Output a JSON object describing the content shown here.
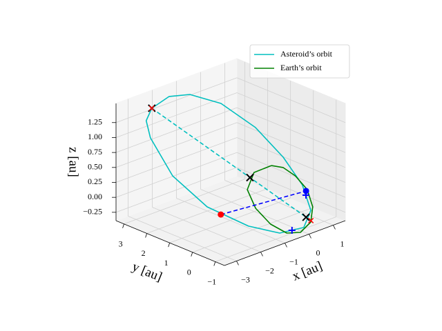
{
  "chart_data": {
    "type": "line3d",
    "xlabel": "x [au]",
    "ylabel": "y [au]",
    "zlabel": "z [au]",
    "xlim": [
      -3.5,
      1.5
    ],
    "ylim": [
      -1.4,
      3.35
    ],
    "zlim": [
      -0.39,
      1.57
    ],
    "xticks": [
      {
        "value": -3,
        "label": "−3"
      },
      {
        "value": -2,
        "label": "−2"
      },
      {
        "value": -1,
        "label": "−1"
      },
      0,
      1
    ],
    "yticks": [
      {
        "value": -1,
        "label": "−1"
      },
      0,
      1,
      2,
      3
    ],
    "zticks": [
      {
        "value": -0.25,
        "label": "−0.25"
      },
      {
        "value": 0,
        "label": "0.00"
      },
      0.25,
      {
        "value": 0.5,
        "label": "0.50"
      },
      0.75,
      {
        "value": 1,
        "label": "1.00"
      },
      1.25
    ],
    "grid": true,
    "legend": "upper right",
    "series": [
      {
        "name": "Asteroid’s orbit",
        "color": "#00bfbf",
        "linestyle": "solid",
        "x": [
          -2.02,
          -1.51,
          -1.04,
          -0.46,
          0.03,
          0.3,
          0.41,
          0.31,
          -0.03,
          -0.62,
          -1.22,
          -1.91,
          -2.32,
          -2.38,
          -2.28,
          -2.02
        ],
        "y": [
          3.35,
          3.13,
          2.72,
          1.97,
          0.98,
          0.05,
          -0.67,
          -1.15,
          -1.2,
          -0.77,
          -0.04,
          1.04,
          2.12,
          3.03,
          3.32,
          3.35
        ],
        "z": [
          1.268,
          1.423,
          1.45,
          1.332,
          1.013,
          0.622,
          0.258,
          -0.079,
          -0.306,
          -0.379,
          -0.288,
          -0.033,
          0.376,
          0.877,
          1.104,
          1.268
        ]
      },
      {
        "name": "Earth’s orbit",
        "color": "#008000",
        "linestyle": "solid",
        "x": [
          0.3,
          0.53,
          0.66,
          0.7,
          0.54,
          0.25,
          -0.14,
          -0.45,
          -0.66,
          -0.73,
          -0.61,
          -0.19,
          0.3
        ],
        "y": [
          0.57,
          0.3,
          -0.1,
          -0.58,
          -0.99,
          -1.21,
          -1.17,
          -0.9,
          -0.41,
          0.17,
          0.66,
          0.81,
          0.57
        ],
        "z": [
          0.4,
          0.376,
          0.28,
          0.12,
          -0.08,
          -0.256,
          -0.376,
          -0.384,
          -0.28,
          -0.096,
          0.12,
          0.32,
          0.4
        ]
      },
      {
        "color": "#00bfbf",
        "linestyle": "dashed",
        "x": [
          -2.02,
          0.2
        ],
        "y": [
          3.35,
          -1.27
        ],
        "z": [
          1.268,
          -0.215
        ]
      },
      {
        "color": "#0000ff",
        "linestyle": "dashed",
        "x": [
          -2.12,
          0.65
        ],
        "y": [
          0.22,
          -0.58
        ],
        "z": [
          0,
          0.104
        ]
      },
      {
        "color": "#ff0000",
        "marker": "o",
        "x": [
          -2.12
        ],
        "y": [
          0.22
        ],
        "z": [
          0
        ]
      },
      {
        "color": "#0000ff",
        "marker": "o",
        "x": [
          0.65
        ],
        "y": [
          -0.58
        ],
        "z": [
          0.104
        ]
      },
      {
        "color": "#000000",
        "marker": "x",
        "x": [
          -2.02,
          -0.65,
          0.13
        ],
        "y": [
          3.35,
          0.5,
          -1.13
        ],
        "z": [
          1.268,
          0.353,
          -0.17
        ]
      },
      {
        "color": "#ff0000",
        "marker": "x",
        "x": [
          -2.02,
          0.2
        ],
        "y": [
          3.35,
          -1.27
        ],
        "z": [
          1.268,
          -0.215
        ]
      },
      {
        "color": "#0000ff",
        "marker": "+",
        "x": [
          0.58,
          -0.3
        ],
        "y": [
          -0.65,
          -0.97
        ],
        "z": [
          0.056,
          -0.35
        ]
      }
    ]
  }
}
